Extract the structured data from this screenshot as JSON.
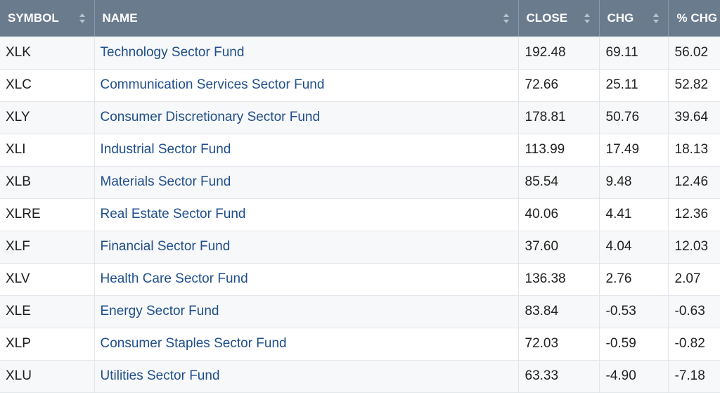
{
  "columns": {
    "symbol": "SYMBOL",
    "name": "NAME",
    "close": "CLOSE",
    "chg": "CHG",
    "pct_chg": "% CHG"
  },
  "rows": [
    {
      "symbol": "XLK",
      "name": "Technology Sector Fund",
      "close": "192.48",
      "chg": "69.11",
      "pct_chg": "56.02"
    },
    {
      "symbol": "XLC",
      "name": "Communication Services Sector Fund",
      "close": "72.66",
      "chg": "25.11",
      "pct_chg": "52.82"
    },
    {
      "symbol": "XLY",
      "name": "Consumer Discretionary Sector Fund",
      "close": "178.81",
      "chg": "50.76",
      "pct_chg": "39.64"
    },
    {
      "symbol": "XLI",
      "name": "Industrial Sector Fund",
      "close": "113.99",
      "chg": "17.49",
      "pct_chg": "18.13"
    },
    {
      "symbol": "XLB",
      "name": "Materials Sector Fund",
      "close": "85.54",
      "chg": "9.48",
      "pct_chg": "12.46"
    },
    {
      "symbol": "XLRE",
      "name": "Real Estate Sector Fund",
      "close": "40.06",
      "chg": "4.41",
      "pct_chg": "12.36"
    },
    {
      "symbol": "XLF",
      "name": "Financial Sector Fund",
      "close": "37.60",
      "chg": "4.04",
      "pct_chg": "12.03"
    },
    {
      "symbol": "XLV",
      "name": "Health Care Sector Fund",
      "close": "136.38",
      "chg": "2.76",
      "pct_chg": "2.07"
    },
    {
      "symbol": "XLE",
      "name": "Energy Sector Fund",
      "close": "83.84",
      "chg": "-0.53",
      "pct_chg": "-0.63"
    },
    {
      "symbol": "XLP",
      "name": "Consumer Staples Sector Fund",
      "close": "72.03",
      "chg": "-0.59",
      "pct_chg": "-0.82"
    },
    {
      "symbol": "XLU",
      "name": "Utilities Sector Fund",
      "close": "63.33",
      "chg": "-4.90",
      "pct_chg": "-7.18"
    }
  ],
  "colors": {
    "header_bg": "#6b7b8e",
    "link": "#1f4e8c"
  },
  "icons": {
    "sort": "sort-arrows-icon"
  }
}
